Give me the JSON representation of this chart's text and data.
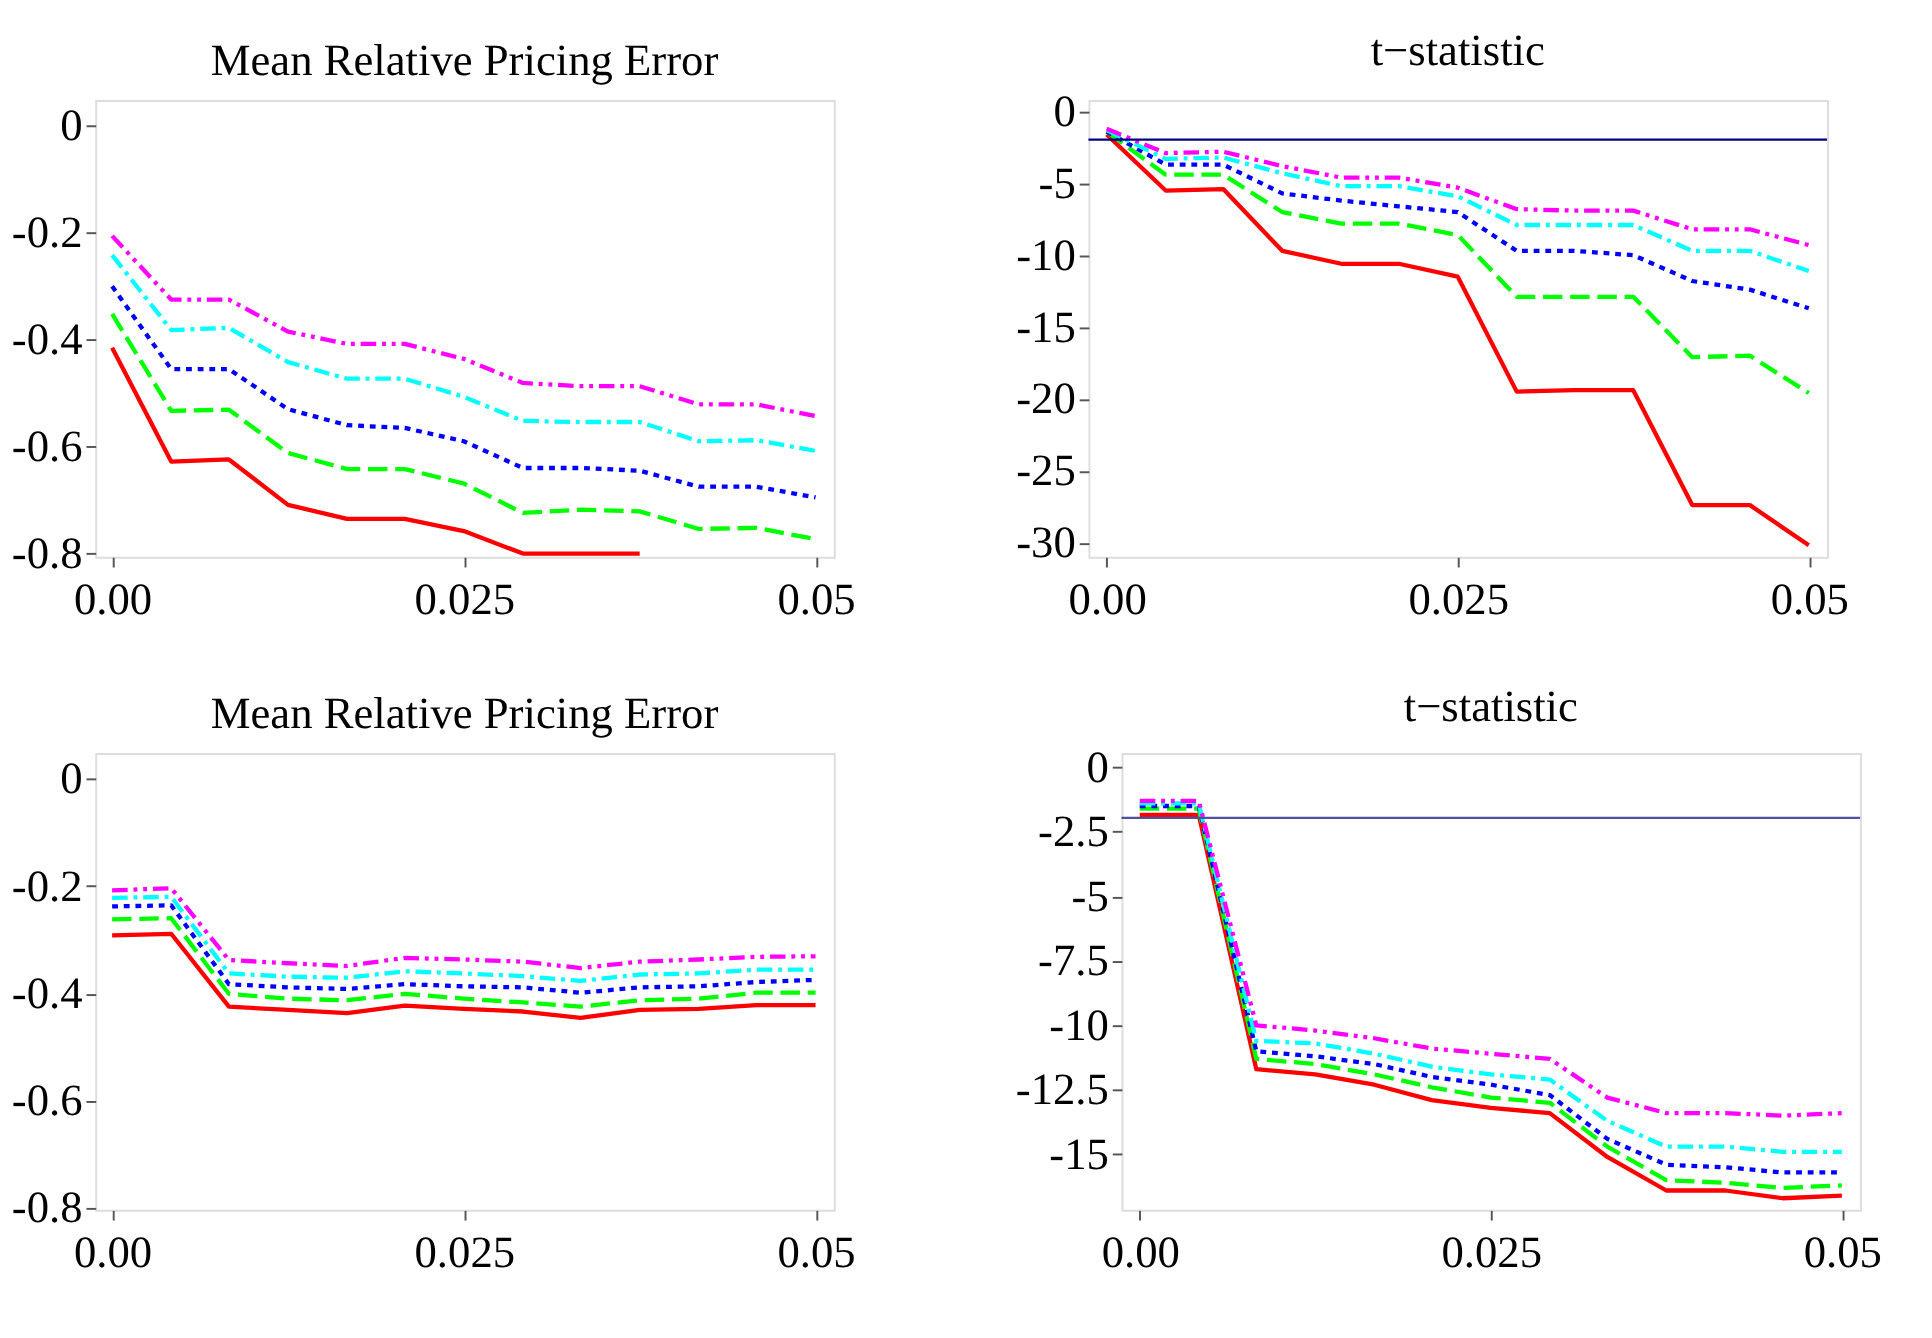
{
  "chart_data": [
    {
      "type": "line",
      "title": "Mean Relative Pricing Error",
      "x": [
        0,
        0.0042,
        0.0083,
        0.0125,
        0.0167,
        0.0208,
        0.025,
        0.0292,
        0.0333,
        0.0375,
        0.0417,
        0.0458,
        0.05
      ],
      "xlim": [
        -0.0012,
        0.0513
      ],
      "xticks": [
        {
          "value": 0,
          "label": "0.00"
        },
        {
          "value": 0.025,
          "label": "0.025"
        },
        {
          "value": 0.05,
          "label": "0.05"
        }
      ],
      "ylim": [
        -0.806,
        0.048
      ],
      "yticks": [
        0,
        -0.2,
        -0.4,
        -0.6,
        -0.8
      ],
      "grid": false,
      "legend": false,
      "series": [
        {
          "color": "#ff0000",
          "line_style": "solid",
          "values": [
            -0.415,
            -0.628,
            -0.624,
            -0.709,
            -0.735,
            -0.735,
            -0.758,
            -0.8,
            -0.8,
            -0.8,
            null,
            null,
            null
          ]
        },
        {
          "color": "#00ff00",
          "line_style": "dashed",
          "values": [
            -0.352,
            -0.533,
            -0.531,
            -0.612,
            -0.642,
            -0.642,
            -0.669,
            -0.724,
            -0.718,
            -0.721,
            -0.754,
            -0.752,
            -0.773
          ]
        },
        {
          "color": "#0000ff",
          "line_style": "dotted",
          "values": [
            -0.3,
            -0.455,
            -0.455,
            -0.53,
            -0.56,
            -0.565,
            -0.59,
            -0.64,
            -0.64,
            -0.645,
            -0.675,
            -0.675,
            -0.695
          ]
        },
        {
          "color": "#00ffff",
          "line_style": "dashdot",
          "values": [
            -0.242,
            -0.382,
            -0.378,
            -0.442,
            -0.473,
            -0.473,
            -0.507,
            -0.552,
            -0.554,
            -0.554,
            -0.59,
            -0.588,
            -0.608
          ]
        },
        {
          "color": "#ff00ff",
          "line_style": "dashdotdot",
          "values": [
            -0.206,
            -0.325,
            -0.325,
            -0.385,
            -0.408,
            -0.408,
            -0.436,
            -0.481,
            -0.487,
            -0.487,
            -0.521,
            -0.521,
            -0.543
          ]
        }
      ]
    },
    {
      "type": "line",
      "title": "t−statistic",
      "x": [
        0,
        0.0042,
        0.0083,
        0.0125,
        0.0167,
        0.0208,
        0.025,
        0.0292,
        0.0333,
        0.0375,
        0.0417,
        0.0458,
        0.05
      ],
      "xlim": [
        -0.0013,
        0.0513
      ],
      "xticks": [
        {
          "value": 0,
          "label": "0.00"
        },
        {
          "value": 0.025,
          "label": "0.025"
        },
        {
          "value": 0.05,
          "label": "0.05"
        }
      ],
      "ylim": [
        -31,
        0.8
      ],
      "yticks": [
        0,
        -5,
        -10,
        -15,
        -20,
        -25,
        -30
      ],
      "grid": false,
      "legend": false,
      "ref_lines": [
        {
          "axis": "y",
          "value": -1.96,
          "color": "#000080"
        }
      ],
      "series": [
        {
          "color": "#ff0000",
          "line_style": "solid",
          "values": [
            -1.6,
            -5.5,
            -5.4,
            -9.7,
            -10.6,
            -10.6,
            -11.5,
            -19.5,
            -19.4,
            -19.4,
            -27.4,
            -27.4,
            -30.2
          ]
        },
        {
          "color": "#00ff00",
          "line_style": "dashed",
          "values": [
            -1.4,
            -4.4,
            -4.4,
            -7.0,
            -7.8,
            -7.8,
            -8.6,
            -12.9,
            -12.9,
            -12.9,
            -17.1,
            -17.0,
            -19.6
          ]
        },
        {
          "color": "#0000ff",
          "line_style": "dotted",
          "values": [
            -1.4,
            -3.7,
            -3.7,
            -5.7,
            -6.2,
            -6.6,
            -7.0,
            -9.7,
            -9.7,
            -10.0,
            -11.8,
            -12.4,
            -13.7
          ]
        },
        {
          "color": "#00ffff",
          "line_style": "dashdot",
          "values": [
            -1.3,
            -3.3,
            -3.2,
            -4.3,
            -5.2,
            -5.2,
            -5.9,
            -7.9,
            -7.9,
            -7.9,
            -9.7,
            -9.7,
            -11.1
          ]
        },
        {
          "color": "#ff00ff",
          "line_style": "dashdotdot",
          "values": [
            -1.2,
            -2.9,
            -2.8,
            -3.8,
            -4.6,
            -4.6,
            -5.3,
            -6.8,
            -6.9,
            -6.9,
            -8.2,
            -8.2,
            -9.3
          ]
        }
      ]
    },
    {
      "type": "line",
      "title": "Mean Relative Pricing Error",
      "x": [
        0,
        0.0042,
        0.0083,
        0.0125,
        0.0167,
        0.0208,
        0.025,
        0.0292,
        0.0333,
        0.0375,
        0.0417,
        0.0458,
        0.05
      ],
      "xlim": [
        -0.0012,
        0.0513
      ],
      "xticks": [
        {
          "value": 0,
          "label": "0.00"
        },
        {
          "value": 0.025,
          "label": "0.025"
        },
        {
          "value": 0.05,
          "label": "0.05"
        }
      ],
      "ylim": [
        -0.804,
        0.048
      ],
      "yticks": [
        0,
        -0.2,
        -0.4,
        -0.6,
        -0.8
      ],
      "grid": false,
      "legend": false,
      "series": [
        {
          "color": "#ff0000",
          "line_style": "solid",
          "values": [
            -0.292,
            -0.289,
            -0.425,
            -0.431,
            -0.437,
            -0.423,
            -0.429,
            -0.434,
            -0.446,
            -0.431,
            -0.429,
            -0.422,
            -0.422
          ]
        },
        {
          "color": "#00ff00",
          "line_style": "dashed",
          "values": [
            -0.262,
            -0.26,
            -0.401,
            -0.41,
            -0.413,
            -0.401,
            -0.41,
            -0.417,
            -0.425,
            -0.413,
            -0.41,
            -0.399,
            -0.399
          ]
        },
        {
          "color": "#0000ff",
          "line_style": "dotted",
          "values": [
            -0.238,
            -0.236,
            -0.383,
            -0.389,
            -0.392,
            -0.383,
            -0.387,
            -0.389,
            -0.399,
            -0.389,
            -0.387,
            -0.379,
            -0.375
          ]
        },
        {
          "color": "#00ffff",
          "line_style": "dashdot",
          "values": [
            -0.222,
            -0.22,
            -0.363,
            -0.369,
            -0.371,
            -0.359,
            -0.363,
            -0.368,
            -0.377,
            -0.365,
            -0.363,
            -0.356,
            -0.356
          ]
        },
        {
          "color": "#ff00ff",
          "line_style": "dashdotdot",
          "values": [
            -0.208,
            -0.204,
            -0.338,
            -0.344,
            -0.349,
            -0.334,
            -0.337,
            -0.341,
            -0.353,
            -0.341,
            -0.337,
            -0.332,
            -0.331
          ]
        }
      ]
    },
    {
      "type": "line",
      "title": "t−statistic",
      "x": [
        0,
        0.0042,
        0.0083,
        0.0125,
        0.0167,
        0.0208,
        0.025,
        0.0292,
        0.0333,
        0.0375,
        0.0417,
        0.0458,
        0.05
      ],
      "xlim": [
        -0.0013,
        0.0513
      ],
      "xticks": [
        {
          "value": 0,
          "label": "0.00"
        },
        {
          "value": 0.025,
          "label": "0.025"
        },
        {
          "value": 0.05,
          "label": "0.05"
        }
      ],
      "ylim": [
        -17.15,
        0.55
      ],
      "yticks": [
        0,
        -2.5,
        -5,
        -7.5,
        -10,
        -12.5,
        -15
      ],
      "grid": false,
      "legend": false,
      "ref_lines": [
        {
          "axis": "y",
          "value": -1.96,
          "color": "#5050a0"
        }
      ],
      "series": [
        {
          "color": "#ff0000",
          "line_style": "solid",
          "values": [
            -1.84,
            -1.84,
            -11.7,
            -11.9,
            -12.3,
            -12.9,
            -13.2,
            -13.4,
            -15.1,
            -16.4,
            -16.4,
            -16.7,
            -16.6
          ]
        },
        {
          "color": "#00ff00",
          "line_style": "dashed",
          "values": [
            -1.6,
            -1.6,
            -11.3,
            -11.5,
            -11.9,
            -12.4,
            -12.8,
            -13.0,
            -14.7,
            -16.0,
            -16.1,
            -16.3,
            -16.2
          ]
        },
        {
          "color": "#0000ff",
          "line_style": "dotted",
          "values": [
            -1.5,
            -1.5,
            -11.0,
            -11.2,
            -11.5,
            -12.0,
            -12.3,
            -12.7,
            -14.4,
            -15.4,
            -15.5,
            -15.7,
            -15.7
          ]
        },
        {
          "color": "#00ffff",
          "line_style": "dashdot",
          "values": [
            -1.4,
            -1.4,
            -10.6,
            -10.7,
            -11.1,
            -11.6,
            -11.9,
            -12.1,
            -13.7,
            -14.7,
            -14.7,
            -14.9,
            -14.9
          ]
        },
        {
          "color": "#ff00ff",
          "line_style": "dashdotdot",
          "values": [
            -1.3,
            -1.3,
            -10.0,
            -10.2,
            -10.5,
            -10.9,
            -11.1,
            -11.3,
            -12.8,
            -13.4,
            -13.4,
            -13.5,
            -13.4
          ]
        }
      ]
    }
  ]
}
